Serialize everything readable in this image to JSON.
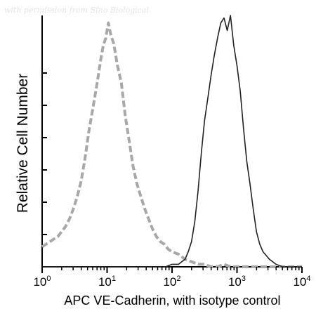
{
  "watermark": "with permission from Sino Biological",
  "chart_data": {
    "type": "line",
    "title": "",
    "xlabel": "APC VE-Cadherin, with isotype control",
    "ylabel": "Relative Cell Number",
    "x_scale": "log",
    "xlim": [
      1,
      10000
    ],
    "ylim": [
      0,
      100
    ],
    "x_ticks": [
      {
        "value": 1,
        "base": "10",
        "exp": "0"
      },
      {
        "value": 10,
        "base": "10",
        "exp": "1"
      },
      {
        "value": 100,
        "base": "10",
        "exp": "2"
      },
      {
        "value": 1000,
        "base": "10",
        "exp": "3"
      },
      {
        "value": 10000,
        "base": "10",
        "exp": "4"
      }
    ],
    "grid": false,
    "series": [
      {
        "color": "#a8a8a8",
        "style": "dashed",
        "x": [
          1.0,
          1.15,
          1.32,
          1.51,
          1.74,
          2.0,
          2.29,
          2.63,
          3.02,
          3.47,
          3.98,
          4.57,
          5.25,
          6.03,
          6.92,
          7.94,
          8.71,
          9.55,
          10.47,
          11.48,
          12.59,
          14.45,
          16.6,
          19.05,
          21.88,
          25.12,
          28.84,
          33.11,
          38.02,
          43.65,
          50.12,
          57.54,
          66.07,
          75.86,
          87.1,
          100.0,
          125.9,
          158.5,
          199.5,
          251.2,
          316.2,
          398.1,
          501.2,
          631.0,
          794.3,
          1000.0,
          1585.0,
          2512.0,
          3981.0,
          6310.0,
          10000.0
        ],
        "y": [
          8,
          9,
          10,
          11,
          12,
          14,
          16,
          19,
          23,
          28,
          34,
          43,
          54,
          63,
          72,
          82,
          88,
          91,
          97,
          92,
          89,
          80,
          73,
          60,
          50,
          40,
          33,
          28,
          23,
          19,
          15,
          12,
          10,
          9,
          7,
          6,
          5,
          3,
          2,
          1,
          1,
          0,
          0,
          1,
          0,
          0,
          0,
          0,
          0,
          0,
          0
        ]
      },
      {
        "color": "#222222",
        "style": "solid",
        "x": [
          1.0,
          10.0,
          79.43,
          100.0,
          125.9,
          141.3,
          158.5,
          177.8,
          199.5,
          223.9,
          251.2,
          281.8,
          316.2,
          354.8,
          398.1,
          446.7,
          501.2,
          562.3,
          631.0,
          707.9,
          794.3,
          891.3,
          1000.0,
          1122.0,
          1259.0,
          1413.0,
          1585.0,
          1778.0,
          1995.0,
          2239.0,
          2512.0,
          3162.0,
          3981.0,
          5012.0,
          10000.0
        ],
        "y": [
          0,
          0,
          0,
          1,
          1,
          2,
          3,
          6,
          10,
          18,
          30,
          45,
          58,
          67,
          76,
          84,
          91,
          97,
          99,
          94,
          100,
          88,
          80,
          70,
          55,
          42,
          33,
          23,
          14,
          9,
          6,
          3,
          1,
          0,
          0
        ]
      }
    ]
  }
}
